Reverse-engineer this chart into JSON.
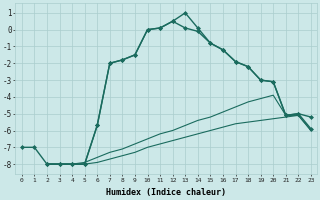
{
  "line1": {
    "x": [
      0,
      1,
      2,
      3,
      4,
      5,
      6,
      7,
      8,
      9,
      10,
      11,
      12,
      13,
      14,
      15,
      16,
      17,
      18,
      19,
      20,
      21,
      22,
      23
    ],
    "y": [
      -7,
      -7,
      -8,
      -8,
      -8,
      -8,
      -5.7,
      -2.0,
      -1.8,
      -1.5,
      0.0,
      0.1,
      0.5,
      1.0,
      0.1,
      -0.8,
      -1.2,
      -1.9,
      -2.2,
      -3.0,
      -3.1,
      -5.1,
      -5.0,
      -5.2
    ],
    "color": "#1a6b5e",
    "marker": "D",
    "markersize": 2.0,
    "linewidth": 1.0
  },
  "line2": {
    "x": [
      2,
      3,
      4,
      5,
      6,
      7,
      8,
      9,
      10,
      11,
      12,
      13,
      14,
      15,
      16,
      17,
      18,
      19,
      20,
      21,
      22,
      23
    ],
    "y": [
      -8,
      -8,
      -8,
      -8,
      -5.7,
      -2.0,
      -1.8,
      -1.5,
      0.0,
      0.1,
      0.5,
      0.1,
      -0.1,
      -0.8,
      -1.2,
      -1.9,
      -2.2,
      -3.0,
      -3.1,
      -5.1,
      -5.0,
      -5.9
    ],
    "color": "#1a6b5e",
    "marker": "D",
    "markersize": 2.0,
    "linewidth": 1.0
  },
  "line3": {
    "x": [
      2,
      3,
      4,
      5,
      6,
      7,
      8,
      9,
      10,
      11,
      12,
      13,
      14,
      15,
      16,
      17,
      18,
      19,
      20,
      21,
      22,
      23
    ],
    "y": [
      -8,
      -8,
      -8,
      -7.9,
      -7.6,
      -7.3,
      -7.1,
      -6.8,
      -6.5,
      -6.2,
      -6.0,
      -5.7,
      -5.4,
      -5.2,
      -4.9,
      -4.6,
      -4.3,
      -4.1,
      -3.9,
      -5.1,
      -5.1,
      -6.0
    ],
    "color": "#1a6b5e",
    "marker": null,
    "linewidth": 0.8
  },
  "line4": {
    "x": [
      2,
      3,
      4,
      5,
      6,
      7,
      8,
      9,
      10,
      11,
      12,
      13,
      14,
      15,
      16,
      17,
      18,
      19,
      20,
      21,
      22,
      23
    ],
    "y": [
      -8,
      -8,
      -8,
      -8,
      -7.9,
      -7.7,
      -7.5,
      -7.3,
      -7.0,
      -6.8,
      -6.6,
      -6.4,
      -6.2,
      -6.0,
      -5.8,
      -5.6,
      -5.5,
      -5.4,
      -5.3,
      -5.2,
      -5.1,
      -6.0
    ],
    "color": "#1a6b5e",
    "marker": null,
    "linewidth": 0.8
  },
  "xlabel": "Humidex (Indice chaleur)",
  "ylabel": "",
  "xlim": [
    -0.5,
    23.5
  ],
  "ylim": [
    -8.6,
    1.6
  ],
  "yticks": [
    1,
    0,
    -1,
    -2,
    -3,
    -4,
    -5,
    -6,
    -7,
    -8
  ],
  "xticks": [
    0,
    1,
    2,
    3,
    4,
    5,
    6,
    7,
    8,
    9,
    10,
    11,
    12,
    13,
    14,
    15,
    16,
    17,
    18,
    19,
    20,
    21,
    22,
    23
  ],
  "bg_color": "#cce8e8",
  "grid_color": "#aacece"
}
